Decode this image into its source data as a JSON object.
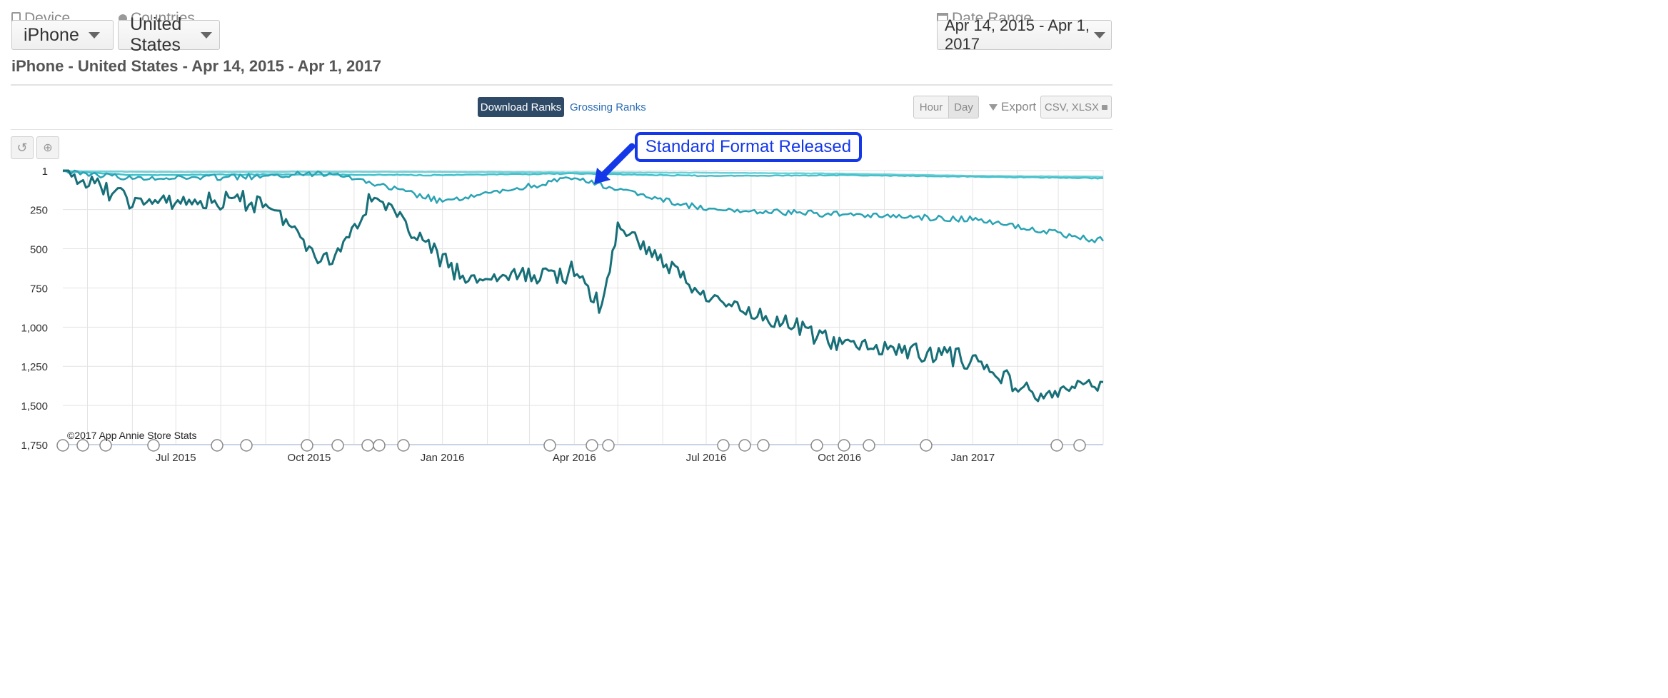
{
  "filters": {
    "device": {
      "label": "Device",
      "value": "iPhone"
    },
    "countries": {
      "label": "Countries",
      "value": "United States"
    },
    "date_range": {
      "label": "Date Range",
      "value": "Apr 14, 2015 - Apr 1, 2017"
    }
  },
  "subtitle": "iPhone - United States - Apr 14, 2015 - Apr 1, 2017",
  "tabs": {
    "download": "Download Ranks",
    "grossing": "Grossing Ranks"
  },
  "toolbar": {
    "hour": "Hour",
    "day": "Day",
    "export": "Export",
    "formats": "CSV, XLSX"
  },
  "annotation": "Standard Format Released",
  "copyright": "©2017 App Annie Store Stats",
  "chart_data": {
    "type": "line",
    "y_axis": {
      "reversed": true,
      "ticks": [
        "1",
        "250",
        "500",
        "750",
        "1,000",
        "1,250",
        "1,500",
        "1,750"
      ],
      "ylim": [
        1,
        1750
      ]
    },
    "x_axis": {
      "ticks": [
        "Jul 2015",
        "Oct 2015",
        "Jan 2016",
        "Apr 2016",
        "Jul 2016",
        "Oct 2016",
        "Jan 2017"
      ]
    },
    "series": [
      {
        "color": "#6fd0d8",
        "points": [
          [
            "2015-04-14",
            5
          ],
          [
            "2015-07-01",
            10
          ],
          [
            "2015-10-01",
            8
          ],
          [
            "2016-01-01",
            10
          ],
          [
            "2016-04-01",
            12
          ],
          [
            "2016-07-01",
            15
          ],
          [
            "2016-10-01",
            20
          ],
          [
            "2017-01-01",
            35
          ],
          [
            "2017-04-01",
            40
          ]
        ]
      },
      {
        "color": "#45c1cc",
        "points": [
          [
            "2015-04-14",
            5
          ],
          [
            "2015-06-01",
            30
          ],
          [
            "2015-09-01",
            25
          ],
          [
            "2016-01-01",
            30
          ],
          [
            "2016-04-01",
            20
          ],
          [
            "2016-07-01",
            35
          ],
          [
            "2016-10-01",
            30
          ],
          [
            "2017-01-01",
            40
          ],
          [
            "2017-04-01",
            50
          ]
        ]
      },
      {
        "color": "#2aa3b4",
        "points": [
          [
            "2015-04-14",
            5
          ],
          [
            "2015-06-01",
            50
          ],
          [
            "2015-09-01",
            40
          ],
          [
            "2015-10-15",
            10
          ],
          [
            "2016-01-01",
            200
          ],
          [
            "2016-04-01",
            50
          ],
          [
            "2016-05-01",
            120
          ],
          [
            "2016-07-01",
            250
          ],
          [
            "2016-10-01",
            280
          ],
          [
            "2017-01-01",
            310
          ],
          [
            "2017-04-01",
            450
          ]
        ]
      },
      {
        "color": "#176f78",
        "points": [
          [
            "2015-04-14",
            5
          ],
          [
            "2015-06-01",
            200
          ],
          [
            "2015-09-01",
            200
          ],
          [
            "2015-10-15",
            600
          ],
          [
            "2015-11-15",
            150
          ],
          [
            "2016-01-15",
            700
          ],
          [
            "2016-04-01",
            650
          ],
          [
            "2016-04-20",
            880
          ],
          [
            "2016-05-01",
            350
          ],
          [
            "2016-07-01",
            800
          ],
          [
            "2016-10-01",
            1100
          ],
          [
            "2017-01-01",
            1200
          ],
          [
            "2017-02-15",
            1450
          ],
          [
            "2017-04-01",
            1350
          ]
        ]
      }
    ]
  }
}
